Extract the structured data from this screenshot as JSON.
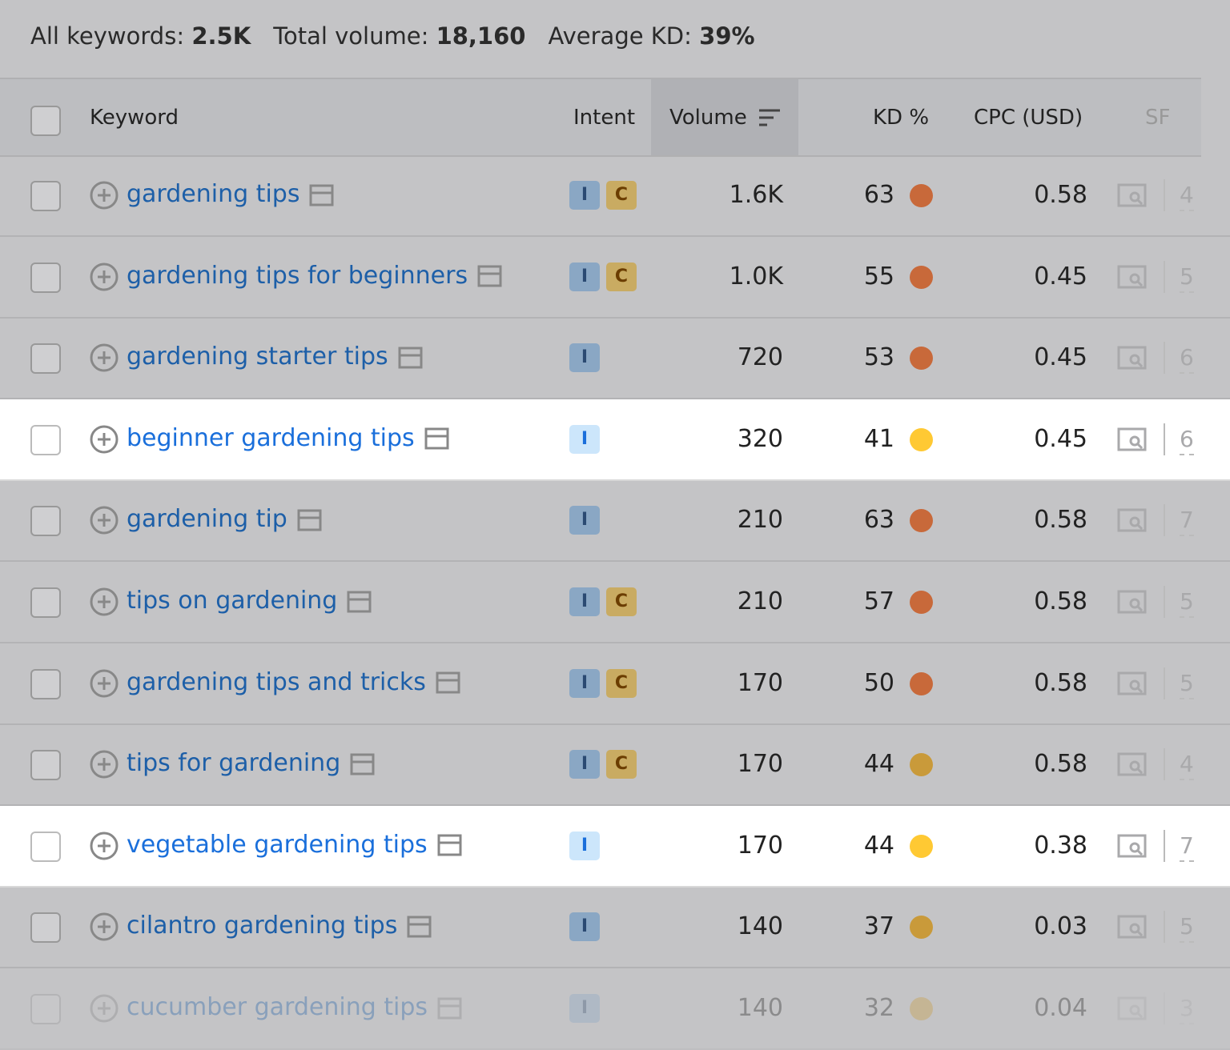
{
  "summary": [
    {
      "label": "All keywords:",
      "value": "2.5K"
    },
    {
      "label": "Total volume:",
      "value": "18,160"
    },
    {
      "label": "Average KD:",
      "value": "39%"
    }
  ],
  "table": {
    "headers": [
      "Keyword",
      "Intent",
      "Volume",
      "KD %",
      "CPC (USD)",
      "SF"
    ],
    "rows": [
      {
        "keyword": "gardening tips",
        "intents": [
          "I",
          "C"
        ],
        "volume": "1.6K",
        "kd": 63,
        "kd_color": "#c8693a",
        "cpc": 0.58,
        "sf": 4,
        "highlighted": false
      },
      {
        "keyword": "gardening tips for beginners",
        "intents": [
          "I",
          "C"
        ],
        "volume": "1.0K",
        "kd": 55,
        "kd_color": "#c8693a",
        "cpc": 0.45,
        "sf": 5,
        "highlighted": false
      },
      {
        "keyword": "gardening starter tips",
        "intents": [
          "I"
        ],
        "volume": "720",
        "kd": 53,
        "kd_color": "#c8693a",
        "cpc": 0.45,
        "sf": 6,
        "highlighted": false
      },
      {
        "keyword": "beginner gardening tips",
        "intents": [
          "I"
        ],
        "volume": "320",
        "kd": 41,
        "kd_color": "#ffc933",
        "cpc": 0.45,
        "sf": 6,
        "highlighted": true
      },
      {
        "keyword": "gardening tip",
        "intents": [
          "I"
        ],
        "volume": "210",
        "kd": 63,
        "kd_color": "#c8693a",
        "cpc": 0.58,
        "sf": 7,
        "highlighted": false
      },
      {
        "keyword": "tips on gardening",
        "intents": [
          "I",
          "C"
        ],
        "volume": "210",
        "kd": 57,
        "kd_color": "#c8693a",
        "cpc": 0.58,
        "sf": 5,
        "highlighted": false
      },
      {
        "keyword": "gardening tips and tricks",
        "intents": [
          "I",
          "C"
        ],
        "volume": "170",
        "kd": 50,
        "kd_color": "#c8693a",
        "cpc": 0.58,
        "sf": 5,
        "highlighted": false
      },
      {
        "keyword": "tips for gardening",
        "intents": [
          "I",
          "C"
        ],
        "volume": "170",
        "kd": 44,
        "kd_color": "#c99a3a",
        "cpc": 0.58,
        "sf": 4,
        "highlighted": false
      },
      {
        "keyword": "vegetable gardening tips",
        "intents": [
          "I"
        ],
        "volume": "170",
        "kd": 44,
        "kd_color": "#ffc933",
        "cpc": 0.38,
        "sf": 7,
        "highlighted": true
      },
      {
        "keyword": "cilantro gardening tips",
        "intents": [
          "I"
        ],
        "volume": "140",
        "kd": 37,
        "kd_color": "#c99a3a",
        "cpc": 0.03,
        "sf": 5,
        "highlighted": false
      },
      {
        "keyword": "cucumber gardening tips",
        "intents": [
          "I"
        ],
        "volume": "140",
        "kd": 32,
        "kd_color": "#c99a3a",
        "cpc": 0.04,
        "sf": 3,
        "highlighted": false
      }
    ]
  }
}
